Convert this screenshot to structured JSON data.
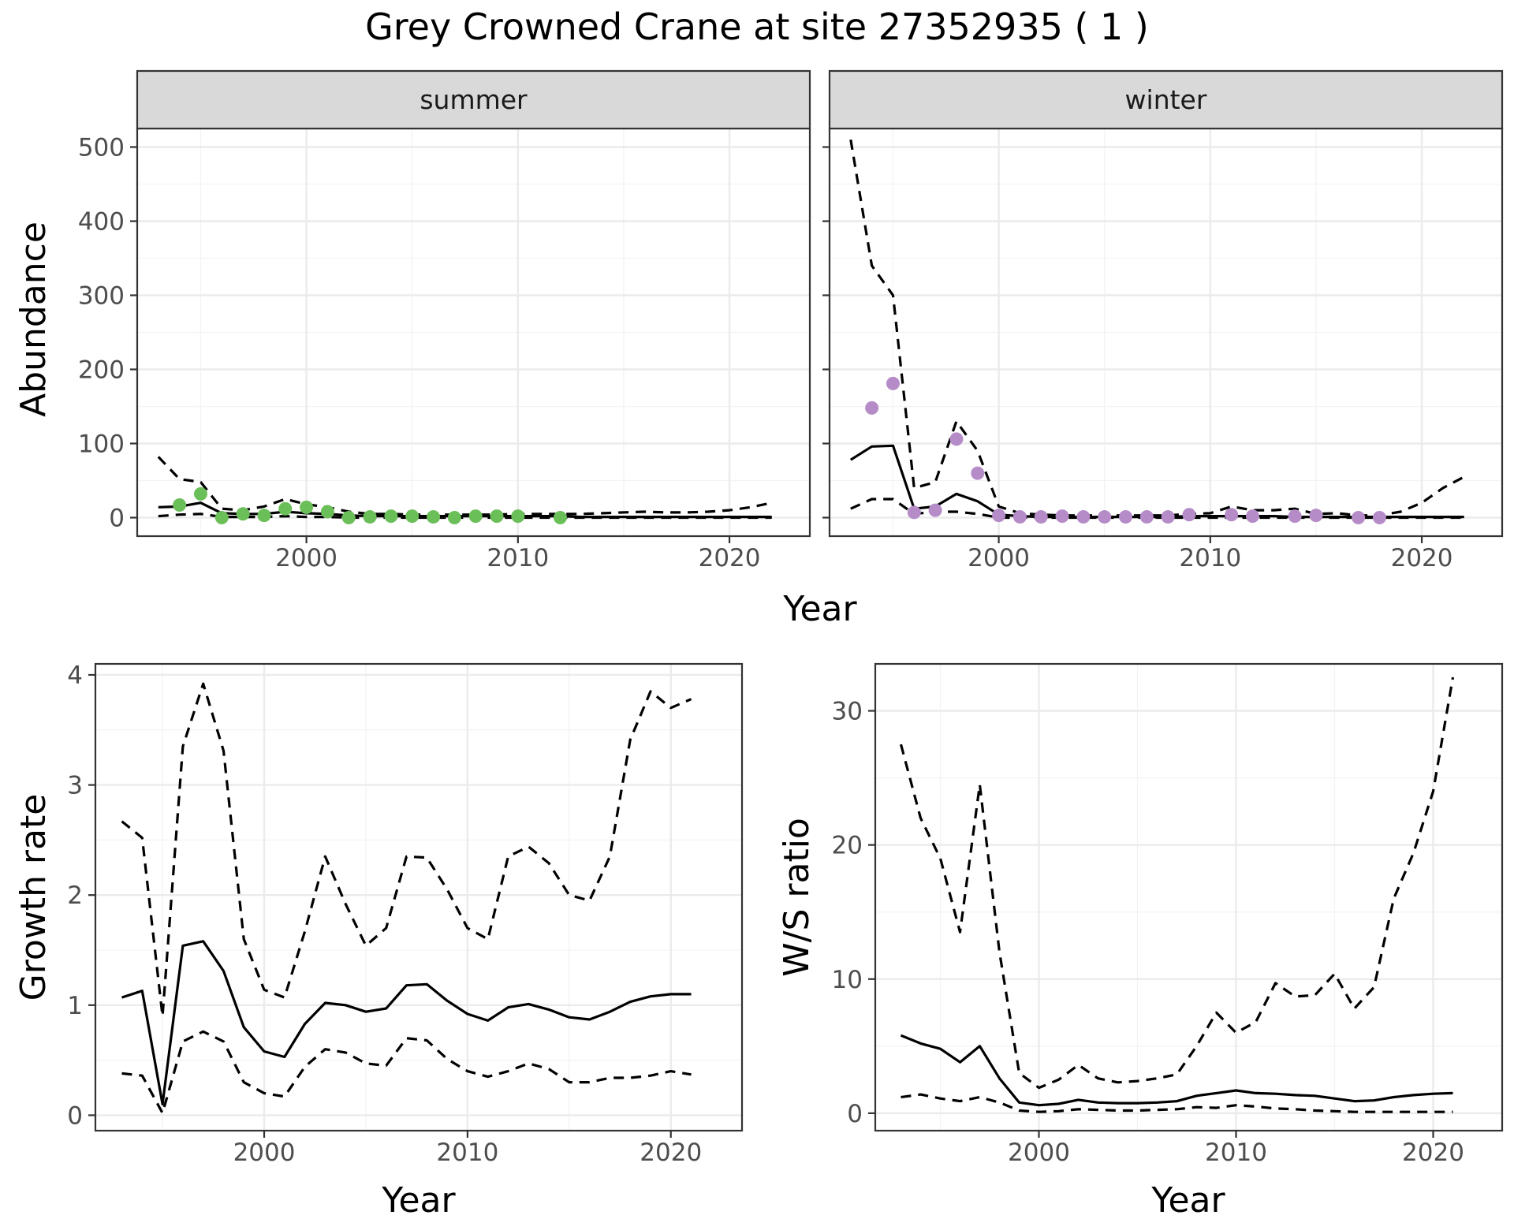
{
  "title": "Grey Crowned Crane at site 27352935 ( 1 )",
  "colors": {
    "summer_points": "#6BBF59",
    "winter_points": "#B58CC8",
    "lines": "#000000"
  },
  "chart_data": [
    {
      "type": "line",
      "facet": "summer",
      "xlabel": "Year",
      "ylabel": "Abundance",
      "xlim": [
        1992,
        2023.8
      ],
      "ylim": [
        -25,
        525
      ],
      "x_ticks": [
        2000,
        2010,
        2020
      ],
      "y_ticks": [
        0,
        100,
        200,
        300,
        400,
        500
      ],
      "grid": true,
      "series": [
        {
          "role": "mean",
          "style": "solid",
          "x": [
            1993,
            1994,
            1995,
            1996,
            1997,
            1998,
            1999,
            2000,
            2001,
            2002,
            2003,
            2004,
            2005,
            2006,
            2007,
            2008,
            2009,
            2010,
            2011,
            2012,
            2013,
            2014,
            2015,
            2016,
            2017,
            2018,
            2019,
            2020,
            2021,
            2022
          ],
          "y": [
            14,
            15,
            20,
            6,
            5,
            5,
            8,
            6,
            5,
            3,
            2,
            2,
            2,
            2,
            2,
            2,
            2,
            2,
            2,
            2,
            1,
            1,
            1,
            1,
            1,
            1,
            1,
            1,
            1,
            1
          ]
        },
        {
          "role": "upper",
          "style": "dashed",
          "x": [
            1993,
            1994,
            1995,
            1996,
            1997,
            1998,
            1999,
            2000,
            2001,
            2002,
            2003,
            2004,
            2005,
            2006,
            2007,
            2008,
            2009,
            2010,
            2011,
            2012,
            2013,
            2014,
            2015,
            2016,
            2017,
            2018,
            2019,
            2020,
            2021,
            2022
          ],
          "y": [
            82,
            52,
            48,
            12,
            10,
            15,
            25,
            18,
            14,
            8,
            5,
            5,
            4,
            4,
            4,
            4,
            4,
            5,
            5,
            5,
            5,
            6,
            7,
            8,
            7,
            7,
            8,
            10,
            14,
            20
          ]
        },
        {
          "role": "lower",
          "style": "dashed",
          "x": [
            1993,
            1994,
            1995,
            1996,
            1997,
            1998,
            1999,
            2000,
            2001,
            2002,
            2003,
            2004,
            2005,
            2006,
            2007,
            2008,
            2009,
            2010,
            2011,
            2012,
            2013,
            2014,
            2015,
            2016,
            2017,
            2018,
            2019,
            2020,
            2021,
            2022
          ],
          "y": [
            2,
            4,
            5,
            1,
            1,
            1,
            2,
            1,
            1,
            0,
            0,
            0,
            0,
            0,
            0,
            0,
            0,
            0,
            0,
            0,
            0,
            0,
            0,
            0,
            0,
            0,
            0,
            0,
            0,
            0
          ]
        }
      ],
      "points": {
        "x": [
          1994,
          1995,
          1996,
          1997,
          1998,
          1999,
          2000,
          2001,
          2002,
          2003,
          2004,
          2005,
          2006,
          2007,
          2008,
          2009,
          2010,
          2012
        ],
        "y": [
          17,
          32,
          0,
          5,
          3,
          12,
          14,
          8,
          0,
          1,
          2,
          2,
          1,
          0,
          2,
          2,
          2,
          0
        ]
      }
    },
    {
      "type": "line",
      "facet": "winter",
      "xlabel": "Year",
      "ylabel": "Abundance",
      "xlim": [
        1992,
        2023.8
      ],
      "ylim": [
        -25,
        525
      ],
      "x_ticks": [
        2000,
        2010,
        2020
      ],
      "y_ticks": [
        0,
        100,
        200,
        300,
        400,
        500
      ],
      "grid": true,
      "series": [
        {
          "role": "mean",
          "style": "solid",
          "x": [
            1993,
            1994,
            1995,
            1996,
            1997,
            1998,
            1999,
            2000,
            2001,
            2002,
            2003,
            2004,
            2005,
            2006,
            2007,
            2008,
            2009,
            2010,
            2011,
            2012,
            2013,
            2014,
            2015,
            2016,
            2017,
            2018,
            2019,
            2020,
            2021,
            2022
          ],
          "y": [
            78,
            96,
            97,
            12,
            15,
            32,
            22,
            4,
            2,
            1,
            1,
            1,
            1,
            1,
            1,
            1,
            2,
            2,
            2,
            2,
            2,
            1,
            1,
            1,
            1,
            1,
            1,
            1,
            1,
            1
          ]
        },
        {
          "role": "upper",
          "style": "dashed",
          "x": [
            1993,
            1994,
            1995,
            1996,
            1997,
            1998,
            1999,
            2000,
            2001,
            2002,
            2003,
            2004,
            2005,
            2006,
            2007,
            2008,
            2009,
            2010,
            2011,
            2012,
            2013,
            2014,
            2015,
            2016,
            2017,
            2018,
            2019,
            2020,
            2021,
            2022
          ],
          "y": [
            510,
            340,
            300,
            40,
            48,
            130,
            90,
            15,
            6,
            4,
            3,
            3,
            3,
            3,
            3,
            3,
            5,
            6,
            15,
            10,
            10,
            12,
            5,
            6,
            3,
            3,
            8,
            20,
            40,
            55
          ]
        },
        {
          "role": "lower",
          "style": "dashed",
          "x": [
            1993,
            1994,
            1995,
            1996,
            1997,
            1998,
            1999,
            2000,
            2001,
            2002,
            2003,
            2004,
            2005,
            2006,
            2007,
            2008,
            2009,
            2010,
            2011,
            2012,
            2013,
            2014,
            2015,
            2016,
            2017,
            2018,
            2019,
            2020,
            2021,
            2022
          ],
          "y": [
            12,
            25,
            25,
            5,
            8,
            8,
            5,
            0,
            0,
            0,
            0,
            0,
            0,
            0,
            0,
            0,
            0,
            0,
            0,
            0,
            0,
            0,
            0,
            0,
            0,
            0,
            0,
            0,
            0,
            0
          ]
        }
      ],
      "points": {
        "x": [
          1994,
          1995,
          1996,
          1997,
          1998,
          1999,
          2000,
          2001,
          2002,
          2003,
          2004,
          2005,
          2006,
          2007,
          2008,
          2009,
          2011,
          2012,
          2014,
          2015,
          2017,
          2018
        ],
        "y": [
          148,
          181,
          7,
          10,
          106,
          60,
          3,
          1,
          1,
          2,
          1,
          1,
          1,
          1,
          1,
          4,
          4,
          2,
          2,
          3,
          0,
          0
        ]
      }
    },
    {
      "type": "line",
      "facet": "",
      "xlabel": "Year",
      "ylabel": "Growth rate",
      "xlim": [
        1991.7,
        2023.5
      ],
      "ylim": [
        -0.14,
        4.1
      ],
      "x_ticks": [
        2000,
        2010,
        2020
      ],
      "y_ticks": [
        0,
        1,
        2,
        3,
        4
      ],
      "grid": true,
      "series": [
        {
          "role": "mean",
          "style": "solid",
          "x": [
            1993,
            1994,
            1995,
            1996,
            1997,
            1998,
            1999,
            2000,
            2001,
            2002,
            2003,
            2004,
            2005,
            2006,
            2007,
            2008,
            2009,
            2010,
            2011,
            2012,
            2013,
            2014,
            2015,
            2016,
            2017,
            2018,
            2019,
            2020,
            2021
          ],
          "y": [
            1.07,
            1.13,
            0.1,
            1.54,
            1.58,
            1.31,
            0.8,
            0.58,
            0.53,
            0.83,
            1.02,
            1.0,
            0.94,
            0.97,
            1.18,
            1.19,
            1.04,
            0.92,
            0.86,
            0.98,
            1.01,
            0.96,
            0.89,
            0.87,
            0.94,
            1.03,
            1.08,
            1.1,
            1.1
          ]
        },
        {
          "role": "upper",
          "style": "dashed",
          "x": [
            1993,
            1994,
            1995,
            1996,
            1997,
            1998,
            1999,
            2000,
            2001,
            2002,
            2003,
            2004,
            2005,
            2006,
            2007,
            2008,
            2009,
            2010,
            2011,
            2012,
            2013,
            2014,
            2015,
            2016,
            2017,
            2018,
            2019,
            2020,
            2021
          ],
          "y": [
            2.67,
            2.52,
            0.9,
            3.35,
            3.92,
            3.31,
            1.6,
            1.14,
            1.07,
            1.67,
            2.35,
            1.92,
            1.54,
            1.7,
            2.35,
            2.34,
            2.05,
            1.7,
            1.6,
            2.35,
            2.44,
            2.29,
            2.0,
            1.95,
            2.35,
            3.41,
            3.85,
            3.7,
            3.78
          ]
        },
        {
          "role": "lower",
          "style": "dashed",
          "x": [
            1993,
            1994,
            1995,
            1996,
            1997,
            1998,
            1999,
            2000,
            2001,
            2002,
            2003,
            2004,
            2005,
            2006,
            2007,
            2008,
            2009,
            2010,
            2011,
            2012,
            2013,
            2014,
            2015,
            2016,
            2017,
            2018,
            2019,
            2020,
            2021
          ],
          "y": [
            0.38,
            0.36,
            0.02,
            0.67,
            0.76,
            0.67,
            0.3,
            0.2,
            0.17,
            0.44,
            0.6,
            0.57,
            0.47,
            0.45,
            0.7,
            0.68,
            0.51,
            0.4,
            0.35,
            0.4,
            0.47,
            0.42,
            0.3,
            0.3,
            0.34,
            0.34,
            0.36,
            0.4,
            0.37
          ]
        }
      ]
    },
    {
      "type": "line",
      "facet": "",
      "xlabel": "Year",
      "ylabel": "W/S ratio",
      "xlim": [
        1991.7,
        2023.5
      ],
      "ylim": [
        -1.3,
        33.5
      ],
      "x_ticks": [
        2000,
        2010,
        2020
      ],
      "y_ticks": [
        0,
        10,
        20,
        30
      ],
      "grid": true,
      "series": [
        {
          "role": "mean",
          "style": "solid",
          "x": [
            1993,
            1994,
            1995,
            1996,
            1997,
            1998,
            1999,
            2000,
            2001,
            2002,
            2003,
            2004,
            2005,
            2006,
            2007,
            2008,
            2009,
            2010,
            2011,
            2012,
            2013,
            2014,
            2015,
            2016,
            2017,
            2018,
            2019,
            2020,
            2021
          ],
          "y": [
            5.8,
            5.2,
            4.8,
            3.8,
            5.0,
            2.6,
            0.8,
            0.6,
            0.7,
            1.0,
            0.8,
            0.75,
            0.75,
            0.8,
            0.9,
            1.3,
            1.5,
            1.7,
            1.5,
            1.45,
            1.35,
            1.3,
            1.1,
            0.9,
            0.95,
            1.2,
            1.35,
            1.45,
            1.5
          ]
        },
        {
          "role": "upper",
          "style": "dashed",
          "x": [
            1993,
            1994,
            1995,
            1996,
            1997,
            1998,
            1999,
            2000,
            2001,
            2002,
            2003,
            2004,
            2005,
            2006,
            2007,
            2008,
            2009,
            2010,
            2011,
            2012,
            2013,
            2014,
            2015,
            2016,
            2017,
            2018,
            2019,
            2020,
            2021
          ],
          "y": [
            27.5,
            22,
            19,
            13.5,
            24.5,
            12,
            3,
            1.9,
            2.5,
            3.6,
            2.6,
            2.3,
            2.4,
            2.6,
            2.9,
            5,
            7.5,
            6,
            6.8,
            9.7,
            8.7,
            8.8,
            10.4,
            7.8,
            9.4,
            16,
            19.4,
            24,
            32.5
          ]
        },
        {
          "role": "lower",
          "style": "dashed",
          "x": [
            1993,
            1994,
            1995,
            1996,
            1997,
            1998,
            1999,
            2000,
            2001,
            2002,
            2003,
            2004,
            2005,
            2006,
            2007,
            2008,
            2009,
            2010,
            2011,
            2012,
            2013,
            2014,
            2015,
            2016,
            2017,
            2018,
            2019,
            2020,
            2021
          ],
          "y": [
            1.2,
            1.4,
            1.1,
            0.9,
            1.2,
            0.8,
            0.2,
            0.1,
            0.15,
            0.3,
            0.25,
            0.2,
            0.2,
            0.25,
            0.3,
            0.45,
            0.4,
            0.6,
            0.5,
            0.35,
            0.3,
            0.2,
            0.15,
            0.1,
            0.1,
            0.1,
            0.1,
            0.1,
            0.1
          ]
        }
      ]
    }
  ]
}
